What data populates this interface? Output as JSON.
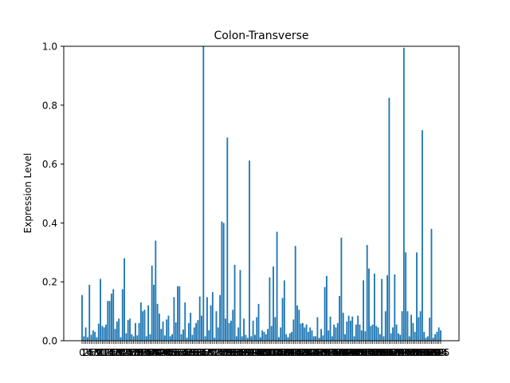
{
  "chart_data": {
    "type": "bar",
    "title": "Colon-Transverse",
    "xlabel": "",
    "ylabel": "Expression Level",
    "ylim": [
      0,
      1.0
    ],
    "yticks": [
      "0.0",
      "0.2",
      "0.4",
      "0.6",
      "0.8",
      "1.0"
    ],
    "grid": false,
    "bar_color": "#1f77b4",
    "values": [
      0.155,
      0.015,
      0.045,
      0.012,
      0.19,
      0.02,
      0.035,
      0.03,
      0.012,
      0.058,
      0.21,
      0.05,
      0.045,
      0.055,
      0.135,
      0.135,
      0.16,
      0.175,
      0.04,
      0.065,
      0.075,
      0.012,
      0.175,
      0.28,
      0.025,
      0.07,
      0.075,
      0.022,
      0.015,
      0.06,
      0.018,
      0.06,
      0.13,
      0.1,
      0.105,
      0.015,
      0.12,
      0.022,
      0.255,
      0.19,
      0.34,
      0.125,
      0.092,
      0.04,
      0.065,
      0.018,
      0.072,
      0.085,
      0.015,
      0.022,
      0.148,
      0.062,
      0.185,
      0.185,
      0.022,
      0.038,
      0.13,
      0.01,
      0.06,
      0.095,
      0.02,
      0.045,
      0.06,
      0.07,
      0.15,
      0.085,
      1.0,
      0.015,
      0.148,
      0.035,
      0.12,
      0.165,
      0.01,
      0.1,
      0.045,
      0.155,
      0.405,
      0.4,
      0.075,
      0.69,
      0.06,
      0.068,
      0.105,
      0.258,
      0.015,
      0.045,
      0.24,
      0.015,
      0.075,
      0.02,
      0.01,
      0.612,
      0.015,
      0.068,
      0.02,
      0.08,
      0.125,
      0.012,
      0.035,
      0.03,
      0.022,
      0.04,
      0.215,
      0.05,
      0.252,
      0.08,
      0.37,
      0.012,
      0.045,
      0.145,
      0.205,
      0.022,
      0.012,
      0.025,
      0.03,
      0.072,
      0.322,
      0.12,
      0.105,
      0.058,
      0.06,
      0.045,
      0.055,
      0.03,
      0.045,
      0.035,
      0.015,
      0.015,
      0.08,
      0.01,
      0.04,
      0.018,
      0.182,
      0.22,
      0.035,
      0.082,
      0.015,
      0.055,
      0.045,
      0.06,
      0.152,
      0.35,
      0.095,
      0.022,
      0.065,
      0.085,
      0.068,
      0.082,
      0.015,
      0.055,
      0.085,
      0.055,
      0.035,
      0.205,
      0.032,
      0.325,
      0.245,
      0.05,
      0.055,
      0.228,
      0.05,
      0.045,
      0.022,
      0.21,
      0.015,
      0.1,
      0.222,
      0.825,
      0.025,
      0.045,
      0.225,
      0.055,
      0.025,
      0.02,
      0.1,
      0.995,
      0.3,
      0.1,
      0.015,
      0.088,
      0.06,
      0.03,
      0.3,
      0.08,
      0.1,
      0.715,
      0.03,
      0.01,
      0.015,
      0.078,
      0.38,
      0.01,
      0.022,
      0.03,
      0.045,
      0.035
    ]
  }
}
